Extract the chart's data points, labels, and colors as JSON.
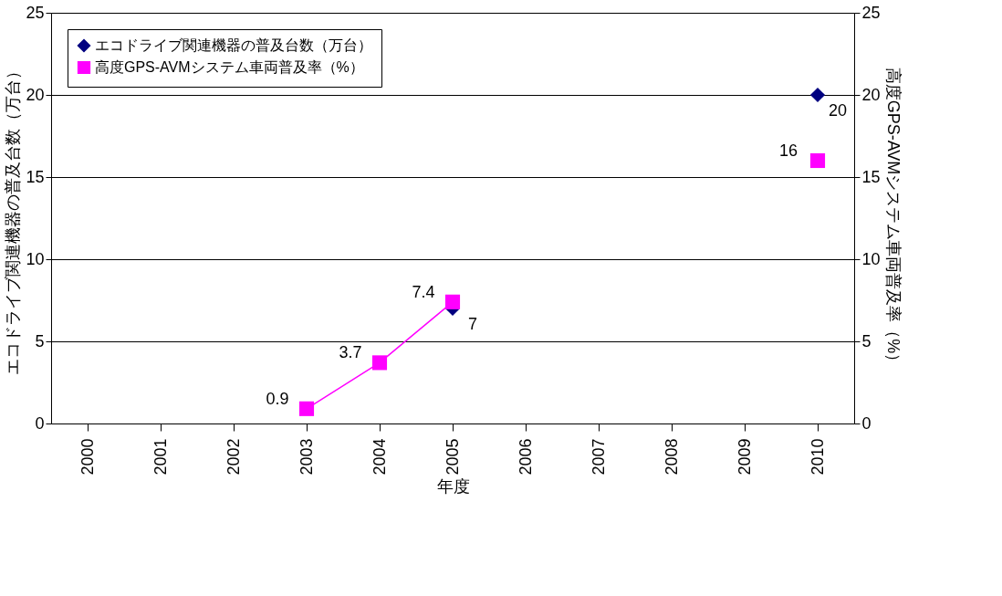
{
  "chart_data": {
    "type": "line",
    "xlabel": "年度",
    "ylabel": "エコドライブ関連機器の普及台数（万台）",
    "y2label": "高度GPS-AVMシステム車両普及率（%）",
    "categories": [
      "2000",
      "2001",
      "2002",
      "2003",
      "2004",
      "2005",
      "2006",
      "2007",
      "2008",
      "2009",
      "2010"
    ],
    "series": [
      {
        "name": "エコドライブ関連機器の普及台数（万台）",
        "color": "#000080",
        "type": "scatter",
        "marker": "diamond",
        "values": [
          null,
          null,
          null,
          null,
          null,
          7,
          null,
          null,
          null,
          null,
          20
        ]
      },
      {
        "name": "高度GPS-AVMシステム車両普及率（%）",
        "color": "#ff00ff",
        "marker": "square",
        "axis": "y2",
        "values": [
          null,
          null,
          null,
          0.9,
          3.7,
          7.4,
          null,
          null,
          null,
          null,
          16
        ]
      }
    ],
    "ylim": [
      0,
      25
    ],
    "yticks": [
      0,
      5,
      10,
      15,
      20,
      25
    ],
    "y2lim": [
      0,
      25
    ],
    "y2ticks": [
      0,
      5,
      10,
      15,
      20,
      25
    ],
    "grid": "y",
    "legend": "top left",
    "data_labels": true
  }
}
